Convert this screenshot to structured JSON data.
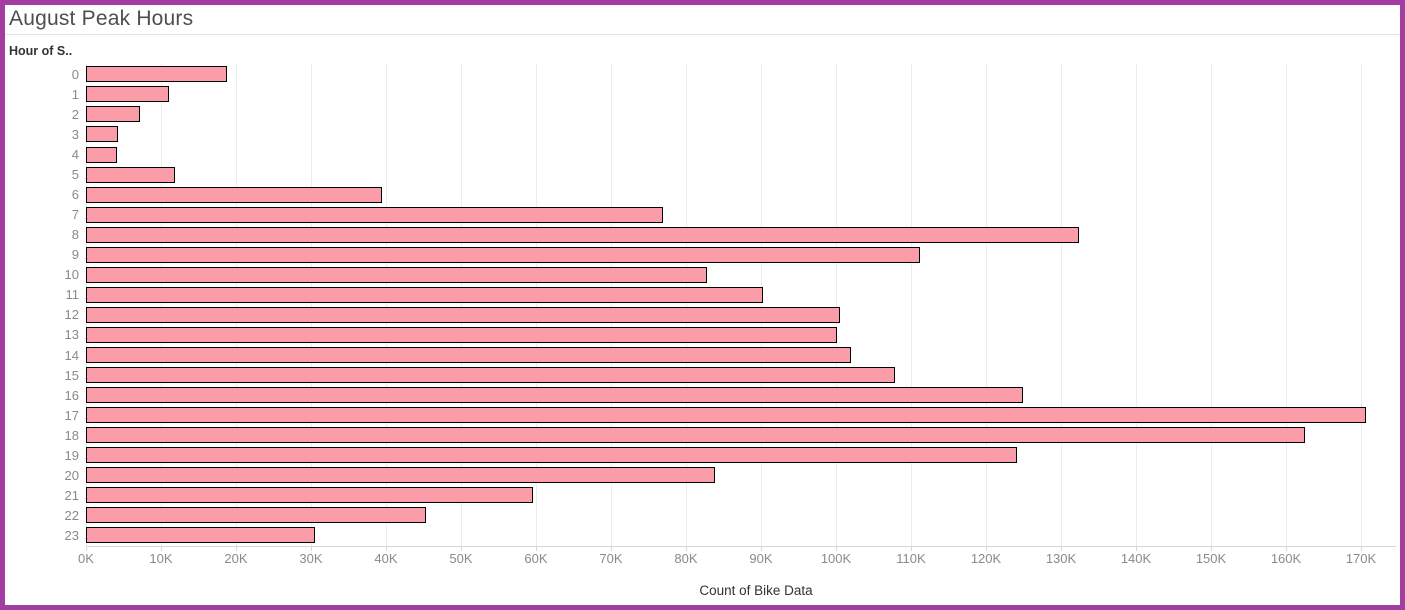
{
  "title": "August Peak Hours",
  "colors": {
    "frame_border": "#A23DA2",
    "bar_fill": "#FA9DA9",
    "bar_border": "#000000",
    "gridline": "#ececec",
    "tick_label": "#8a8a8a",
    "axis_title": "#333333",
    "title_text": "#4e4e4e"
  },
  "chart_data": {
    "type": "bar",
    "orientation": "horizontal",
    "title": "August Peak Hours",
    "ylabel": "Hour of S..",
    "xlabel": "Count of Bike Data",
    "categories": [
      "0",
      "1",
      "2",
      "3",
      "4",
      "5",
      "6",
      "7",
      "8",
      "9",
      "10",
      "11",
      "12",
      "13",
      "14",
      "15",
      "16",
      "17",
      "18",
      "19",
      "20",
      "21",
      "22",
      "23"
    ],
    "values": [
      18500,
      10800,
      6900,
      4000,
      3800,
      11600,
      39200,
      76700,
      132100,
      110900,
      82500,
      90000,
      100300,
      99800,
      101700,
      107600,
      124700,
      170400,
      162300,
      123900,
      83600,
      59300,
      45000,
      30300
    ],
    "x_ticks": [
      "0K",
      "10K",
      "20K",
      "30K",
      "40K",
      "50K",
      "60K",
      "70K",
      "80K",
      "90K",
      "100K",
      "110K",
      "120K",
      "130K",
      "140K",
      "150K",
      "160K",
      "170K"
    ],
    "x_tick_values": [
      0,
      10000,
      20000,
      30000,
      40000,
      50000,
      60000,
      70000,
      80000,
      90000,
      100000,
      110000,
      120000,
      130000,
      140000,
      150000,
      160000,
      170000
    ],
    "xlim": [
      0,
      174000
    ],
    "grid": true,
    "legend": false
  }
}
